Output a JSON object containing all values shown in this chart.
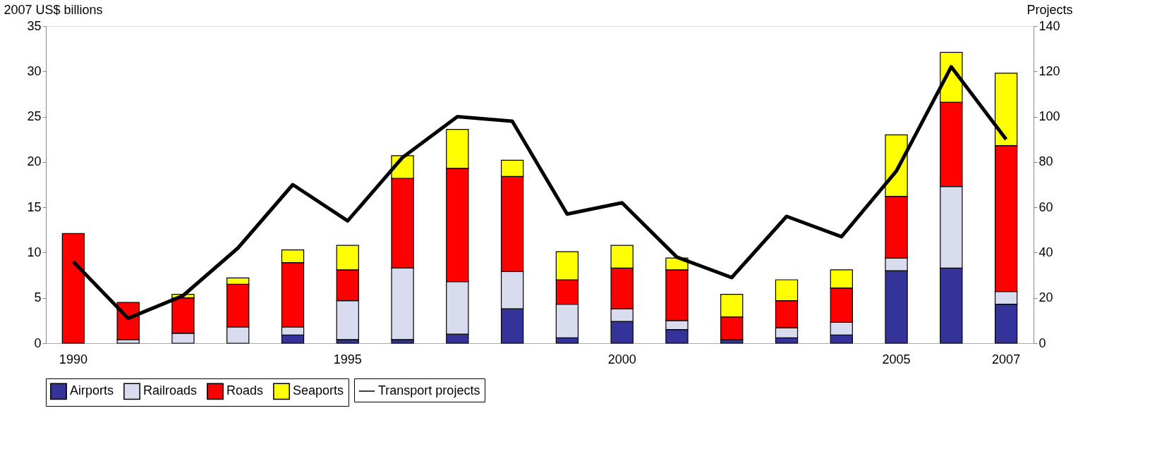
{
  "chart_data": {
    "type": "bar",
    "stacked": true,
    "ylabel": "2007 US$ billions",
    "y2label": "Projects",
    "categories": [
      "1990",
      null,
      null,
      null,
      null,
      "1995",
      null,
      null,
      null,
      null,
      "2000",
      null,
      null,
      null,
      null,
      "2005",
      null,
      "2007"
    ],
    "ylim": [
      0,
      35
    ],
    "yticks": [
      0,
      5,
      10,
      15,
      20,
      25,
      30,
      35
    ],
    "y2lim": [
      0,
      140
    ],
    "y2ticks": [
      0,
      20,
      40,
      60,
      80,
      100,
      120,
      140
    ],
    "grid": false,
    "legend": "bottom",
    "series": [
      {
        "name": "Airports",
        "color": "#333399",
        "values": [
          null,
          null,
          null,
          null,
          0.9,
          0.4,
          0.4,
          1.0,
          3.8,
          0.6,
          2.4,
          1.5,
          0.4,
          0.6,
          0.9,
          8.0,
          8.3,
          4.3
        ]
      },
      {
        "name": "Railroads",
        "color": "#d9dcef",
        "values": [
          null,
          0.4,
          1.1,
          1.8,
          0.9,
          4.3,
          7.9,
          5.8,
          4.1,
          3.7,
          1.4,
          1.0,
          null,
          1.1,
          1.4,
          1.4,
          9.0,
          1.4
        ]
      },
      {
        "name": "Roads",
        "color": "#ff0000",
        "values": [
          12.1,
          4.1,
          3.9,
          4.7,
          7.1,
          3.4,
          9.9,
          12.5,
          10.5,
          2.7,
          4.5,
          5.6,
          2.5,
          3.0,
          3.8,
          6.8,
          9.3,
          16.1
        ]
      },
      {
        "name": "Seaports",
        "color": "#ffff00",
        "values": [
          null,
          null,
          0.4,
          0.7,
          1.4,
          2.7,
          2.5,
          4.3,
          1.8,
          3.1,
          2.5,
          1.3,
          2.5,
          2.3,
          2.0,
          6.8,
          5.5,
          8.0
        ]
      },
      {
        "name": "Transport projects",
        "type": "line",
        "axis": "y2",
        "color": "#000000",
        "values": [
          36,
          11,
          21,
          42,
          70,
          54,
          82,
          100,
          98,
          57,
          62,
          38,
          29,
          56,
          47,
          76,
          122,
          90
        ]
      }
    ]
  }
}
